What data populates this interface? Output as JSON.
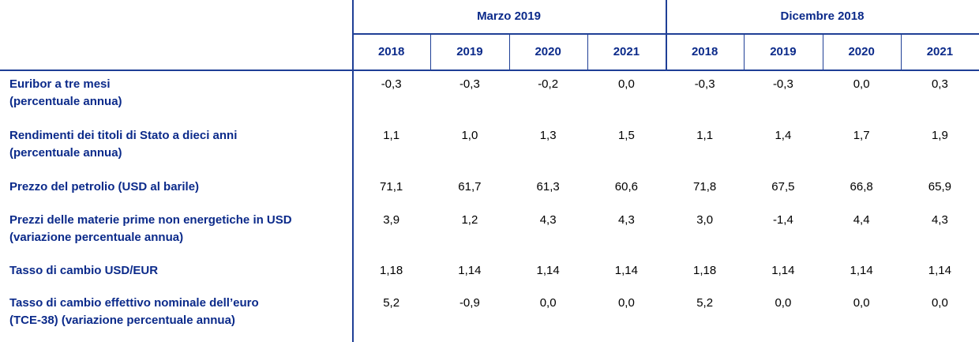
{
  "table": {
    "groups": [
      {
        "title": "Marzo 2019",
        "years": [
          "2018",
          "2019",
          "2020",
          "2021"
        ]
      },
      {
        "title": "Dicembre 2018",
        "years": [
          "2018",
          "2019",
          "2020",
          "2021"
        ]
      }
    ],
    "rows": [
      {
        "label": [
          "Euribor a tre mesi",
          "(percentuale annua)"
        ],
        "values": [
          "-0,3",
          "-0,3",
          "-0,2",
          "0,0",
          "-0,3",
          "-0,3",
          "0,0",
          "0,3"
        ]
      },
      {
        "label": [
          "Rendimenti dei titoli di Stato a dieci anni",
          "(percentuale annua)"
        ],
        "values": [
          "1,1",
          "1,0",
          "1,3",
          "1,5",
          "1,1",
          "1,4",
          "1,7",
          "1,9"
        ]
      },
      {
        "label": [
          "Prezzo del petrolio (USD al barile)"
        ],
        "values": [
          "71,1",
          "61,7",
          "61,3",
          "60,6",
          "71,8",
          "67,5",
          "66,8",
          "65,9"
        ]
      },
      {
        "label": [
          "Prezzi delle materie prime non energetiche in USD",
          "(variazione percentuale annua)"
        ],
        "values": [
          "3,9",
          "1,2",
          "4,3",
          "4,3",
          "3,0",
          "-1,4",
          "4,4",
          "4,3"
        ]
      },
      {
        "label": [
          "Tasso di cambio USD/EUR"
        ],
        "values": [
          "1,18",
          "1,14",
          "1,14",
          "1,14",
          "1,18",
          "1,14",
          "1,14",
          "1,14"
        ]
      },
      {
        "label": [
          "Tasso di cambio effettivo nominale dell’euro",
          "(TCE-38) (variazione percentuale annua)"
        ],
        "values": [
          "5,2",
          "-0,9",
          "0,0",
          "0,0",
          "5,2",
          "0,0",
          "0,0",
          "0,0"
        ]
      }
    ]
  }
}
